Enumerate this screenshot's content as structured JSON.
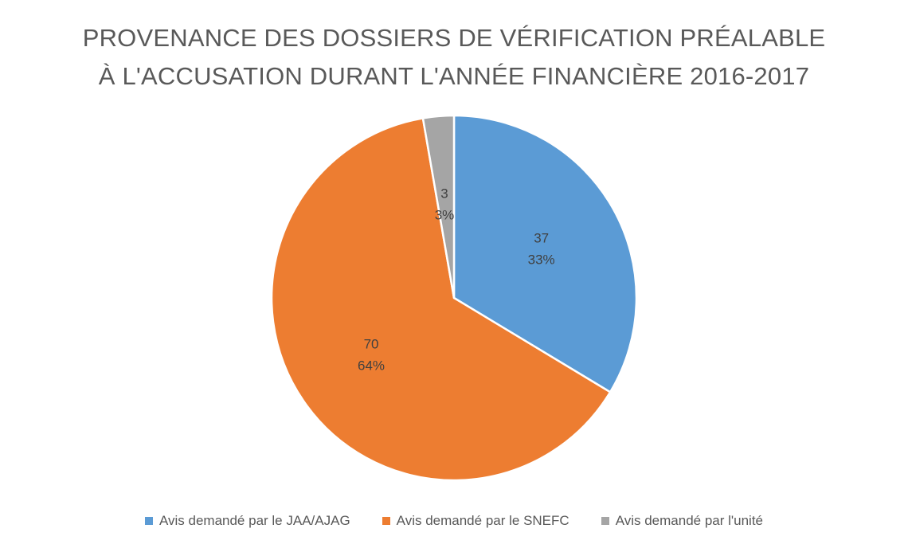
{
  "chart_data": {
    "type": "pie",
    "title_lines": [
      "PROVENANCE DES DOSSIERS DE VÉRIFICATION PRÉALABLE",
      "À L'ACCUSATION DURANT L'ANNÉE FINANCIÈRE 2016-2017"
    ],
    "slices": [
      {
        "label": "Avis demandé par le JAA/AJAG",
        "value": 37,
        "percent": "33%",
        "color": "#5B9BD5"
      },
      {
        "label": "Avis demandé par le SNEFC",
        "value": 70,
        "percent": "64%",
        "color": "#ED7D31"
      },
      {
        "label": "Avis demandé par l'unité",
        "value": 3,
        "percent": "3%",
        "color": "#A5A5A5"
      }
    ],
    "legend_position": "bottom",
    "start_angle": "top-clockwise"
  }
}
